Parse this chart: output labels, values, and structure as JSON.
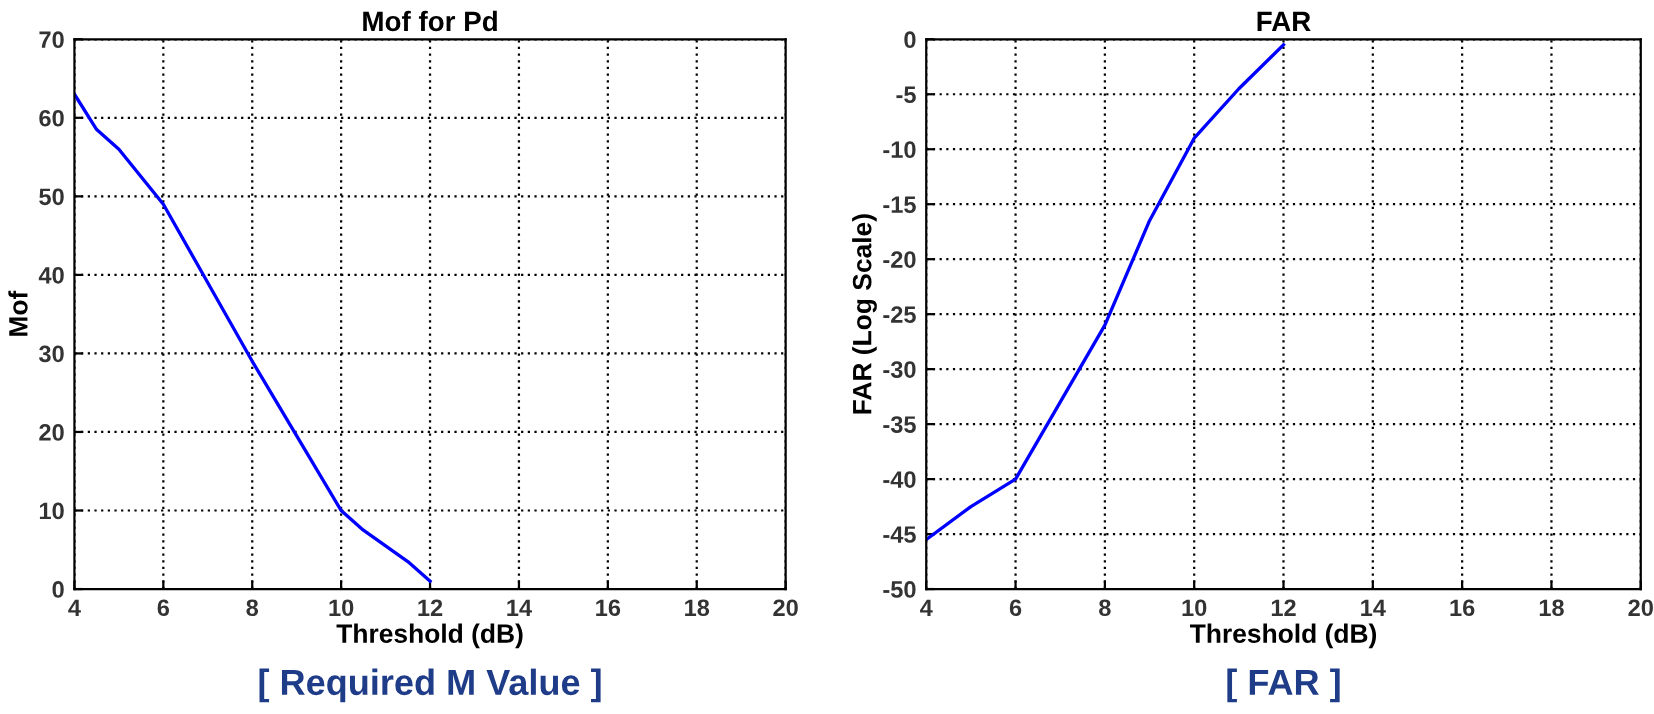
{
  "chart_data": [
    {
      "type": "line",
      "title": "Mof for Pd",
      "xlabel": "Threshold (dB)",
      "ylabel": "Mof",
      "annotations": [
        "[ Required M Value ]"
      ],
      "series": [
        {
          "color": "#0000ff",
          "x": [
            4,
            4.5,
            5,
            5.5,
            6,
            7,
            8,
            9,
            10,
            10.5,
            11,
            11.5,
            12
          ],
          "values": [
            63,
            58.5,
            56,
            52.5,
            49,
            39,
            29,
            19.5,
            10,
            7.5,
            5.5,
            3.5,
            1
          ]
        }
      ],
      "xlim": [
        4,
        20
      ],
      "xticks": [
        4,
        6,
        8,
        10,
        12,
        14,
        16,
        18,
        20
      ],
      "ylim": [
        0,
        70
      ],
      "yticks": [
        0,
        10,
        20,
        30,
        40,
        50,
        60,
        70
      ],
      "grid": true,
      "legend": false,
      "marker": "none",
      "line_style": "solid"
    },
    {
      "type": "line",
      "title": "FAR",
      "xlabel": "Threshold (dB)",
      "ylabel": "FAR (Log Scale)",
      "annotations": [
        "[ FAR ]"
      ],
      "series": [
        {
          "color": "#0000ff",
          "x": [
            4,
            5,
            6,
            7,
            8,
            9,
            10,
            11,
            12
          ],
          "values": [
            -45.5,
            -42.5,
            -40,
            -33,
            -26,
            -16.5,
            -9,
            -4.5,
            -0.5
          ]
        }
      ],
      "xlim": [
        4,
        20
      ],
      "xticks": [
        4,
        6,
        8,
        10,
        12,
        14,
        16,
        18,
        20
      ],
      "ylim": [
        -50,
        0
      ],
      "yticks": [
        -50,
        -45,
        -40,
        -35,
        -30,
        -25,
        -20,
        -15,
        -10,
        -5,
        0
      ],
      "grid": true,
      "legend": false,
      "marker": "none",
      "line_style": "solid"
    }
  ]
}
